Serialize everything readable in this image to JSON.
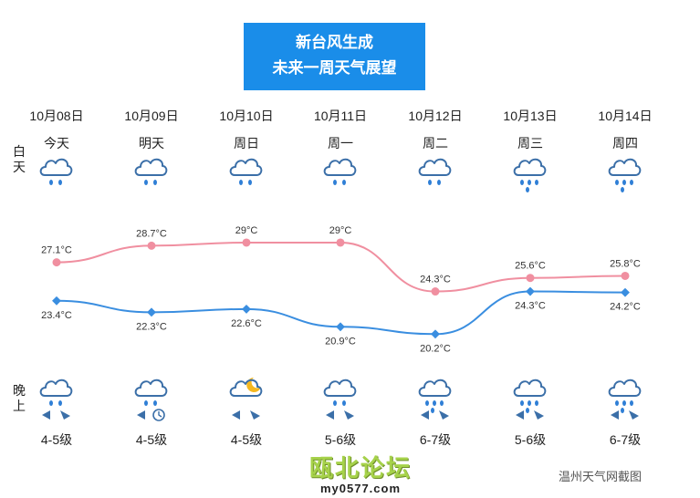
{
  "banner": {
    "line1": "新台风生成",
    "line2": "未来一周天气展望"
  },
  "side_labels": {
    "day": "白天",
    "night": "晚上"
  },
  "days": [
    {
      "date": "10月08日",
      "name": "今天",
      "day_icon": "cloud-rain-icon",
      "night_icon": "cloud-rain-icon",
      "wind": "4-5级",
      "wind_icon": "wind-direction-icon"
    },
    {
      "date": "10月09日",
      "name": "明天",
      "day_icon": "cloud-rain-icon",
      "night_icon": "cloud-rain-icon",
      "wind": "4-5级",
      "wind_icon": "wind-clock-icon"
    },
    {
      "date": "10月10日",
      "name": "周日",
      "day_icon": "cloud-rain-icon",
      "night_icon": "cloud-moon-icon",
      "wind": "4-5级",
      "wind_icon": "wind-direction-icon"
    },
    {
      "date": "10月11日",
      "name": "周一",
      "day_icon": "cloud-rain-icon",
      "night_icon": "cloud-rain-icon",
      "wind": "5-6级",
      "wind_icon": "wind-direction-icon"
    },
    {
      "date": "10月12日",
      "name": "周二",
      "day_icon": "cloud-rain-icon",
      "night_icon": "cloud-heavy-rain-icon",
      "wind": "6-7级",
      "wind_icon": "wind-direction-icon"
    },
    {
      "date": "10月13日",
      "name": "周三",
      "day_icon": "cloud-heavy-rain-icon",
      "night_icon": "cloud-heavy-rain-icon",
      "wind": "5-6级",
      "wind_icon": "wind-direction-icon"
    },
    {
      "date": "10月14日",
      "name": "周四",
      "day_icon": "cloud-heavy-rain-icon",
      "night_icon": "cloud-heavy-rain-icon",
      "wind": "6-7级",
      "wind_icon": "wind-direction-icon"
    }
  ],
  "chart_data": {
    "type": "line",
    "categories": [
      "10月08日",
      "10月09日",
      "10月10日",
      "10月11日",
      "10月12日",
      "10月13日",
      "10月14日"
    ],
    "series": [
      {
        "values": [
          27.1,
          28.7,
          29,
          29,
          24.3,
          25.6,
          25.8
        ],
        "labels": [
          "27.1°C",
          "28.7°C",
          "29°C",
          "29°C",
          "24.3°C",
          "25.6°C",
          "25.8°C"
        ],
        "color": "#f08fa0"
      },
      {
        "values": [
          23.4,
          22.3,
          22.6,
          20.9,
          20.2,
          24.3,
          24.2
        ],
        "labels": [
          "23.4°C",
          "22.3°C",
          "22.6°C",
          "20.9°C",
          "20.2°C",
          "24.3°C",
          "24.2°C"
        ],
        "color": "#3a8ee0"
      }
    ]
  },
  "logo": {
    "text": "瓯北论坛",
    "url": "my0577.com"
  },
  "credit": "温州天气网截图"
}
